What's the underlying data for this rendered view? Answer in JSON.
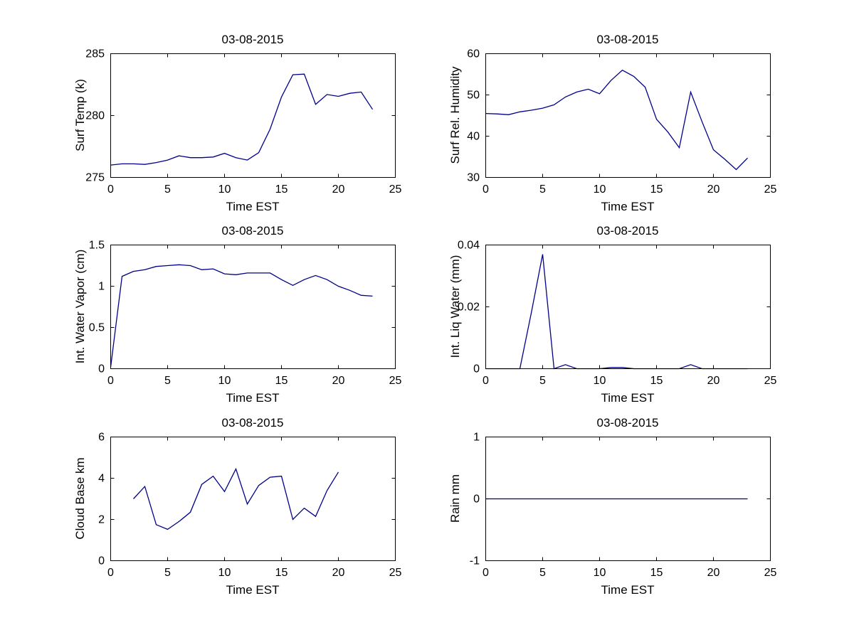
{
  "figure": {
    "background": "#ffffff",
    "axis_color": "#000000",
    "date": "03-08-2015"
  },
  "chart_data": [
    {
      "type": "line",
      "title": "03-08-2015",
      "xlabel": "Time EST",
      "ylabel": "Surf Temp (k)",
      "xlim": [
        0,
        25
      ],
      "ylim": [
        275,
        285
      ],
      "xticks": [
        0,
        5,
        10,
        15,
        20,
        25
      ],
      "xtick_labels": [
        "0",
        "5",
        "10",
        "15",
        "20",
        "25"
      ],
      "yticks": [
        275,
        280,
        285
      ],
      "ytick_labels": [
        "275",
        "280",
        "285"
      ],
      "grid": false,
      "legend": null,
      "line_color": "#00008B",
      "x": [
        0,
        1,
        2,
        3,
        4,
        5,
        6,
        7,
        8,
        9,
        10,
        11,
        12,
        13,
        14,
        15,
        16,
        17,
        18,
        19,
        20,
        21,
        22,
        23
      ],
      "y": [
        276.0,
        276.1,
        276.1,
        276.05,
        276.2,
        276.4,
        276.75,
        276.6,
        276.6,
        276.65,
        276.95,
        276.6,
        276.4,
        277.0,
        278.9,
        281.5,
        283.3,
        283.35,
        280.9,
        281.7,
        281.55,
        281.8,
        281.9,
        280.5
      ]
    },
    {
      "type": "line",
      "title": "03-08-2015",
      "xlabel": "Time EST",
      "ylabel": "Surf Rel. Humidity",
      "xlim": [
        0,
        25
      ],
      "ylim": [
        30,
        60
      ],
      "xticks": [
        0,
        5,
        10,
        15,
        20,
        25
      ],
      "xtick_labels": [
        "0",
        "5",
        "10",
        "15",
        "20",
        "25"
      ],
      "yticks": [
        30,
        40,
        50,
        60
      ],
      "ytick_labels": [
        "30",
        "40",
        "50",
        "60"
      ],
      "grid": false,
      "legend": null,
      "line_color": "#00008B",
      "x": [
        0,
        1,
        2,
        3,
        4,
        5,
        6,
        7,
        8,
        9,
        10,
        11,
        12,
        13,
        14,
        15,
        16,
        17,
        18,
        19,
        20,
        21,
        22,
        23
      ],
      "y": [
        45.5,
        45.4,
        45.2,
        45.9,
        46.3,
        46.8,
        47.6,
        49.5,
        50.7,
        51.4,
        50.3,
        53.5,
        56.0,
        54.5,
        51.9,
        44.1,
        41.0,
        37.2,
        50.7,
        43.5,
        36.7,
        34.4,
        31.9,
        34.7
      ]
    },
    {
      "type": "line",
      "title": "03-08-2015",
      "xlabel": "Time EST",
      "ylabel": "Int. Water Vapor (cm)",
      "xlim": [
        0,
        25
      ],
      "ylim": [
        0,
        1.5
      ],
      "xticks": [
        0,
        5,
        10,
        15,
        20,
        25
      ],
      "xtick_labels": [
        "0",
        "5",
        "10",
        "15",
        "20",
        "25"
      ],
      "yticks": [
        0,
        0.5,
        1,
        1.5
      ],
      "ytick_labels": [
        "0",
        "0.5",
        "1",
        "1.5"
      ],
      "grid": false,
      "legend": null,
      "line_color": "#00008B",
      "x": [
        0,
        1,
        2,
        3,
        4,
        5,
        6,
        7,
        8,
        9,
        10,
        11,
        12,
        13,
        14,
        15,
        16,
        17,
        18,
        19,
        20,
        21,
        22,
        23
      ],
      "y": [
        0.02,
        1.12,
        1.18,
        1.2,
        1.24,
        1.25,
        1.26,
        1.25,
        1.2,
        1.21,
        1.15,
        1.14,
        1.16,
        1.16,
        1.16,
        1.08,
        1.01,
        1.08,
        1.13,
        1.08,
        1.0,
        0.95,
        0.89,
        0.88
      ]
    },
    {
      "type": "line",
      "title": "03-08-2015",
      "xlabel": "Time EST",
      "ylabel": "Int. Liq Water (mm)",
      "xlim": [
        0,
        25
      ],
      "ylim": [
        0,
        0.04
      ],
      "xticks": [
        0,
        5,
        10,
        15,
        20,
        25
      ],
      "xtick_labels": [
        "0",
        "5",
        "10",
        "15",
        "20",
        "25"
      ],
      "yticks": [
        0,
        0.02,
        0.04
      ],
      "ytick_labels": [
        "0",
        "0.02",
        "0.04"
      ],
      "grid": false,
      "legend": null,
      "line_color": "#00008B",
      "x": [
        0,
        1,
        2,
        3,
        4,
        5,
        6,
        7,
        8,
        9,
        10,
        11,
        12,
        13,
        14,
        15,
        16,
        17,
        18,
        19,
        20,
        21,
        22,
        23
      ],
      "y": [
        0,
        0,
        0,
        0,
        0.018,
        0.037,
        0,
        0.0013,
        0,
        0,
        0,
        0.0004,
        0.0004,
        0,
        0,
        0,
        0,
        0,
        0.0013,
        0,
        0,
        0,
        0,
        0
      ]
    },
    {
      "type": "line",
      "title": "03-08-2015",
      "xlabel": "Time EST",
      "ylabel": "Cloud Base km",
      "xlim": [
        0,
        25
      ],
      "ylim": [
        0,
        6
      ],
      "xticks": [
        0,
        5,
        10,
        15,
        20,
        25
      ],
      "xtick_labels": [
        "0",
        "5",
        "10",
        "15",
        "20",
        "25"
      ],
      "yticks": [
        0,
        2,
        4,
        6
      ],
      "ytick_labels": [
        "0",
        "2",
        "4",
        "6"
      ],
      "grid": false,
      "legend": null,
      "line_color": "#00008B",
      "x": [
        2,
        3,
        4,
        5,
        6,
        7,
        8,
        9,
        10,
        11,
        12,
        13,
        14,
        15,
        16,
        17,
        18,
        19,
        20
      ],
      "y": [
        3.0,
        3.6,
        1.75,
        1.52,
        1.9,
        2.35,
        3.7,
        4.1,
        3.35,
        4.45,
        2.75,
        3.65,
        4.05,
        4.1,
        2.0,
        2.55,
        2.15,
        3.4,
        4.3
      ]
    },
    {
      "type": "line",
      "title": "03-08-2015",
      "xlabel": "Time EST",
      "ylabel": "Rain mm",
      "xlim": [
        0,
        25
      ],
      "ylim": [
        -1,
        1
      ],
      "xticks": [
        0,
        5,
        10,
        15,
        20,
        25
      ],
      "xtick_labels": [
        "0",
        "5",
        "10",
        "15",
        "20",
        "25"
      ],
      "yticks": [
        -1,
        0,
        1
      ],
      "ytick_labels": [
        "-1",
        "0",
        "1"
      ],
      "grid": false,
      "legend": null,
      "line_color": "#00008B",
      "x": [
        0,
        1,
        2,
        3,
        4,
        5,
        6,
        7,
        8,
        9,
        10,
        11,
        12,
        13,
        14,
        15,
        16,
        17,
        18,
        19,
        20,
        21,
        22,
        23
      ],
      "y": [
        0,
        0,
        0,
        0,
        0,
        0,
        0,
        0,
        0,
        0,
        0,
        0,
        0,
        0,
        0,
        0,
        0,
        0,
        0,
        0,
        0,
        0,
        0,
        0
      ]
    }
  ]
}
